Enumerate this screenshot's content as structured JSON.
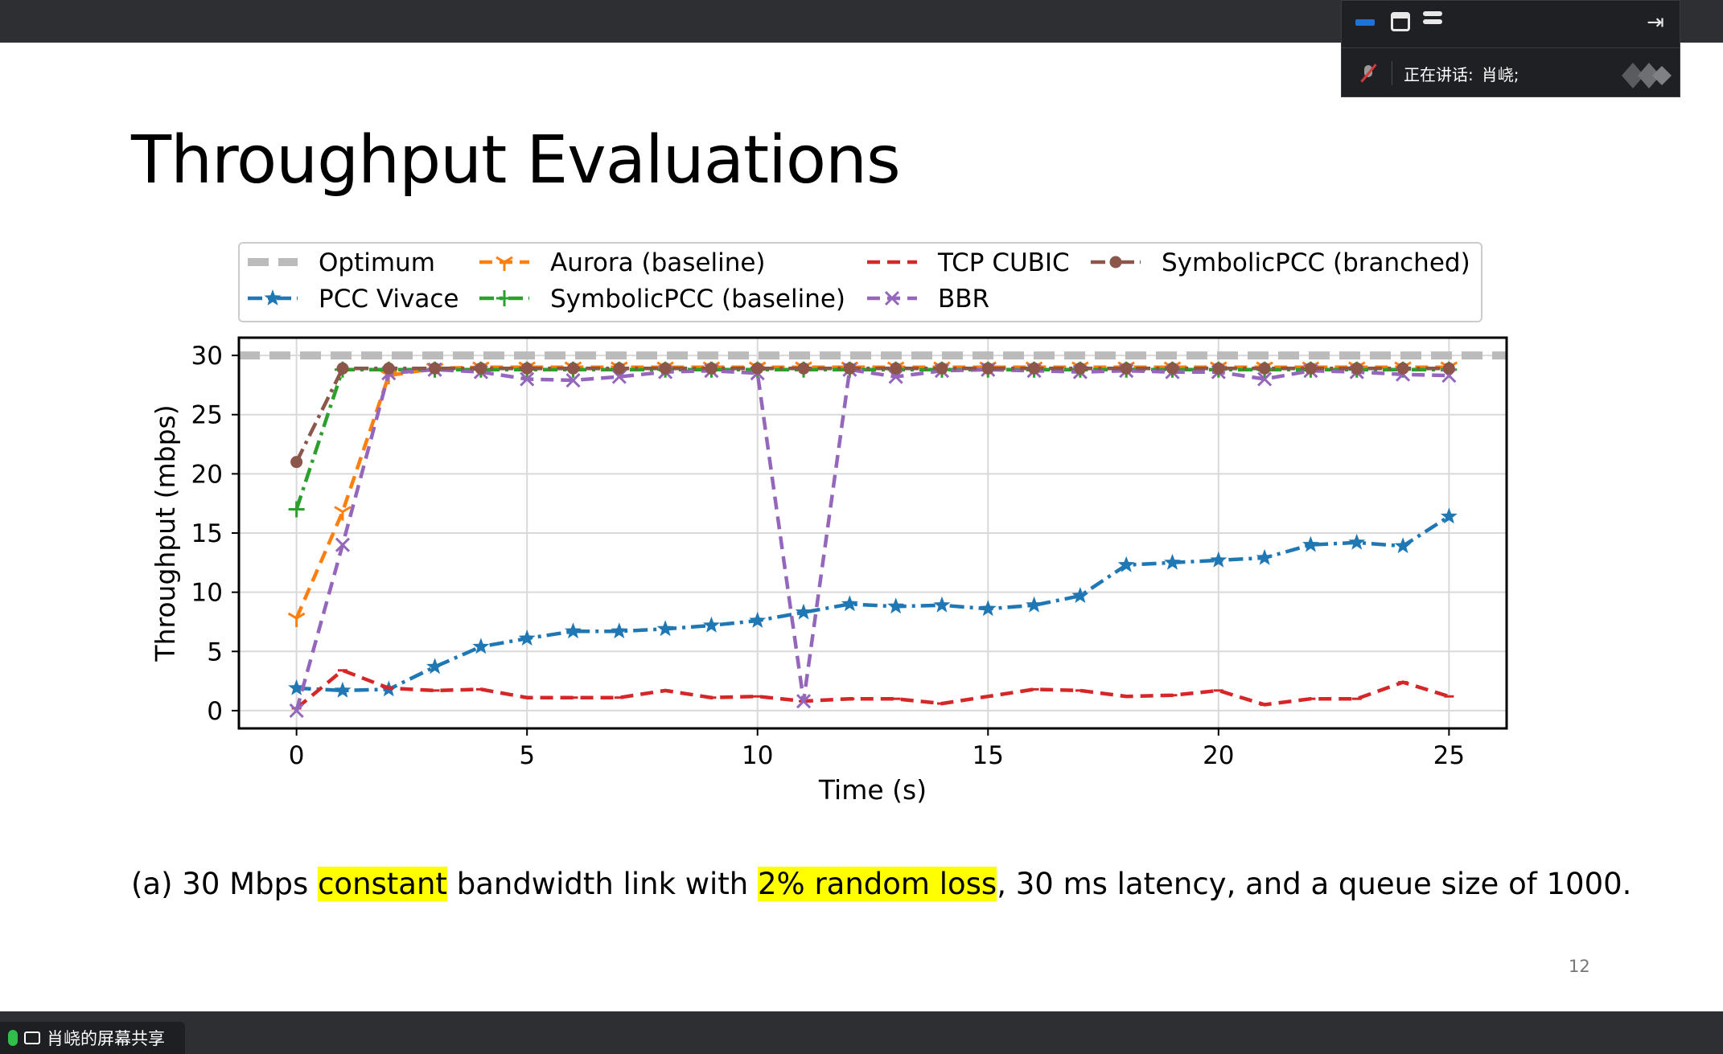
{
  "slide": {
    "title": "Throughput Evaluations",
    "caption_parts": [
      {
        "text": "(a) 30 Mbps ",
        "highlight": false
      },
      {
        "text": "constant",
        "highlight": true
      },
      {
        "text": " bandwidth link with ",
        "highlight": false
      },
      {
        "text": "2% random loss",
        "highlight": true
      },
      {
        "text": ", 30 ms latency, and a queue size of 1000.",
        "highlight": false
      }
    ],
    "page_number": "12",
    "highlight_color": "#ffff00"
  },
  "meeting_panel": {
    "speaking_label": "正在讲话:",
    "speaker_name": "肖峣;"
  },
  "share_tag": {
    "label": "肖峣的屏幕共享"
  },
  "chart_data": {
    "type": "line",
    "title": "",
    "xlabel": "Time (s)",
    "ylabel": "Throughput (mbps)",
    "xlim": [
      -1.25,
      26.25
    ],
    "ylim": [
      -1.5,
      31.5
    ],
    "xticks": [
      0,
      5,
      10,
      15,
      20,
      25
    ],
    "yticks": [
      0,
      5,
      10,
      15,
      20,
      25,
      30
    ],
    "grid": true,
    "legend_position": "above",
    "series": [
      {
        "name": "Optimum",
        "color": "#bbbbbb",
        "dash": "dashed-thick",
        "marker": "none",
        "x": [
          -1.25,
          26.25
        ],
        "y": [
          30,
          30
        ]
      },
      {
        "name": "PCC Vivace",
        "color": "#1f77b4",
        "dash": "dashdot",
        "marker": "star",
        "x": [
          0,
          1,
          2,
          3,
          4,
          5,
          6,
          7,
          8,
          9,
          10,
          11,
          12,
          13,
          14,
          15,
          16,
          17,
          18,
          19,
          20,
          21,
          22,
          23,
          24,
          25
        ],
        "y": [
          1.9,
          1.7,
          1.8,
          3.7,
          5.4,
          6.1,
          6.7,
          6.7,
          6.9,
          7.2,
          7.6,
          8.3,
          9.0,
          8.8,
          8.9,
          8.6,
          8.9,
          9.7,
          12.3,
          12.5,
          12.7,
          12.9,
          14.0,
          14.2,
          13.9,
          16.4
        ]
      },
      {
        "name": "Aurora (baseline)",
        "color": "#ff7f0e",
        "dash": "dashed",
        "marker": "tri",
        "x": [
          0,
          1,
          2,
          3,
          4,
          5,
          6,
          7,
          8,
          9,
          10,
          11,
          12,
          13,
          14,
          15,
          16,
          17,
          18,
          19,
          20,
          21,
          22,
          23,
          24,
          25
        ],
        "y": [
          7.8,
          16.8,
          28.3,
          28.9,
          29.0,
          29.0,
          29.0,
          29.0,
          29.0,
          29.0,
          29.0,
          29.0,
          29.0,
          29.0,
          29.0,
          29.0,
          29.0,
          29.0,
          29.0,
          29.0,
          29.0,
          29.0,
          29.0,
          29.0,
          29.0,
          29.0
        ]
      },
      {
        "name": "SymbolicPCC (baseline)",
        "color": "#2ca02c",
        "dash": "dashdot",
        "marker": "plus",
        "x": [
          0,
          1,
          2,
          3,
          4,
          5,
          6,
          7,
          8,
          9,
          10,
          11,
          12,
          13,
          14,
          15,
          16,
          17,
          18,
          19,
          20,
          21,
          22,
          23,
          24,
          25
        ],
        "y": [
          17.0,
          28.8,
          28.8,
          28.8,
          28.8,
          28.8,
          28.8,
          28.8,
          28.8,
          28.8,
          28.8,
          28.8,
          28.8,
          28.8,
          28.8,
          28.8,
          28.8,
          28.8,
          28.8,
          28.8,
          28.8,
          28.8,
          28.8,
          28.8,
          28.8,
          28.8
        ]
      },
      {
        "name": "TCP CUBIC",
        "color": "#d62728",
        "dash": "dashed",
        "marker": "tick",
        "x": [
          0,
          1,
          2,
          3,
          4,
          5,
          6,
          7,
          8,
          9,
          10,
          11,
          12,
          13,
          14,
          15,
          16,
          17,
          18,
          19,
          20,
          21,
          22,
          23,
          24,
          25
        ],
        "y": [
          0.2,
          3.4,
          1.9,
          1.7,
          1.8,
          1.1,
          1.1,
          1.1,
          1.7,
          1.1,
          1.2,
          0.8,
          1.0,
          1.0,
          0.6,
          1.2,
          1.8,
          1.7,
          1.2,
          1.3,
          1.7,
          0.5,
          1.0,
          1.0,
          2.4,
          1.2
        ]
      },
      {
        "name": "BBR",
        "color": "#9467bd",
        "dash": "dashed",
        "marker": "x",
        "x": [
          0,
          1,
          2,
          3,
          4,
          5,
          6,
          7,
          8,
          9,
          10,
          11,
          12,
          13,
          14,
          15,
          16,
          17,
          18,
          19,
          20,
          21,
          22,
          23,
          24,
          25
        ],
        "y": [
          0.0,
          14.0,
          28.5,
          28.8,
          28.6,
          28.0,
          27.9,
          28.2,
          28.6,
          28.7,
          28.5,
          0.8,
          28.8,
          28.2,
          28.7,
          28.8,
          28.7,
          28.6,
          28.7,
          28.6,
          28.6,
          28.0,
          28.7,
          28.6,
          28.4,
          28.3
        ]
      },
      {
        "name": "SymbolicPCC (branched)",
        "color": "#8c564b",
        "dash": "dashdot",
        "marker": "circle",
        "x": [
          0,
          1,
          2,
          3,
          4,
          5,
          6,
          7,
          8,
          9,
          10,
          11,
          12,
          13,
          14,
          15,
          16,
          17,
          18,
          19,
          20,
          21,
          22,
          23,
          24,
          25
        ],
        "y": [
          21.0,
          28.9,
          28.9,
          28.9,
          28.9,
          28.9,
          28.9,
          28.9,
          28.9,
          28.9,
          28.9,
          28.9,
          28.9,
          28.9,
          28.9,
          28.9,
          28.9,
          28.9,
          28.9,
          28.9,
          28.9,
          28.9,
          28.9,
          28.9,
          28.9,
          28.9
        ]
      }
    ],
    "legend_order": [
      "Optimum",
      "Aurora (baseline)",
      "TCP CUBIC",
      "SymbolicPCC (branched)",
      "PCC Vivace",
      "SymbolicPCC (baseline)",
      "BBR"
    ]
  }
}
